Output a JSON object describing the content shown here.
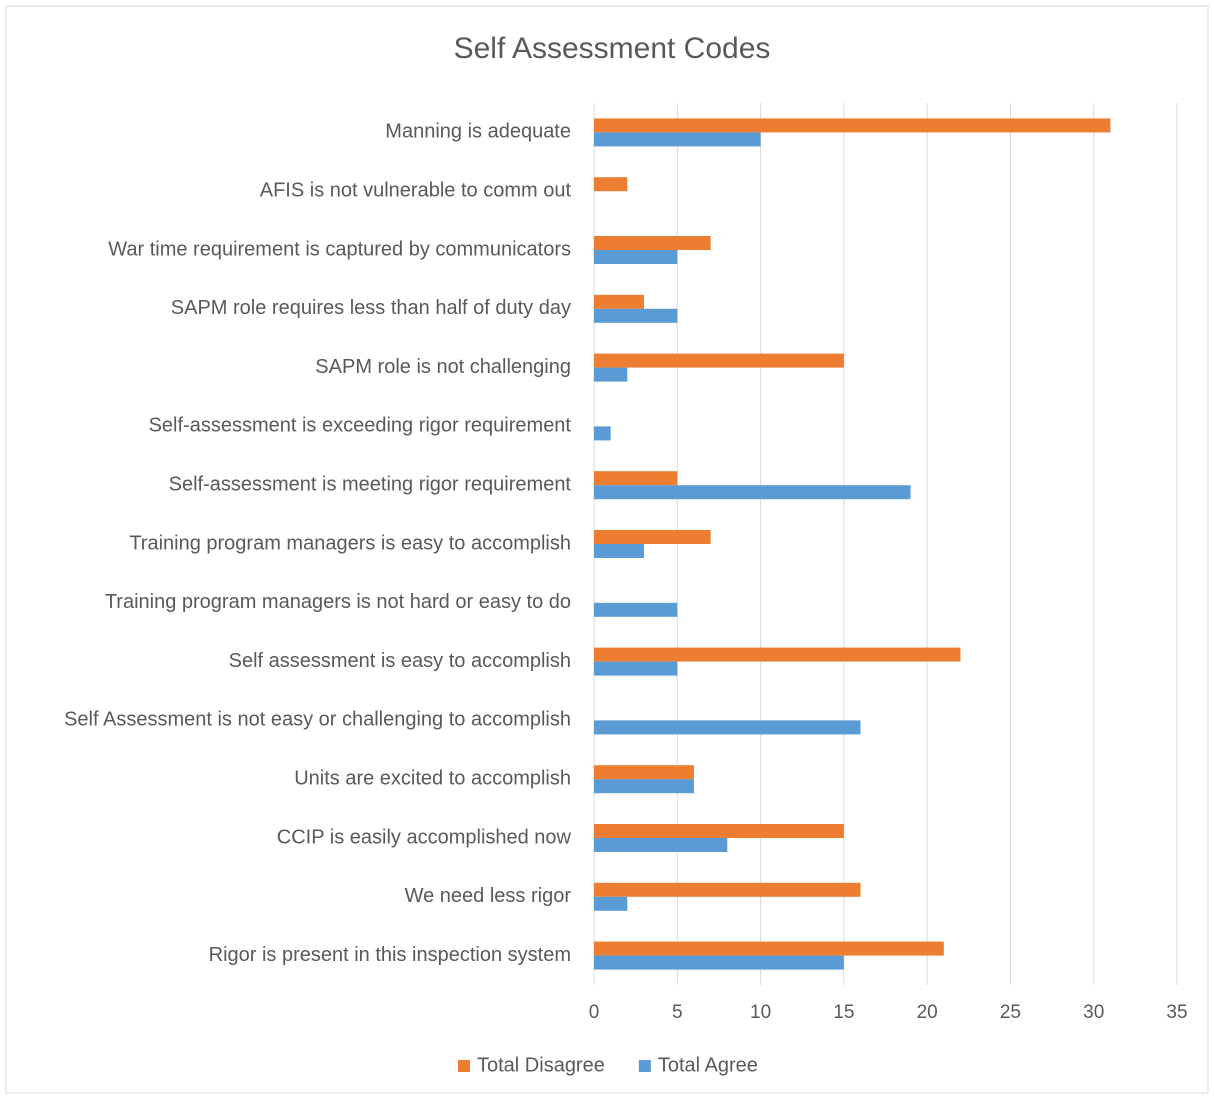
{
  "chart_data": {
    "type": "bar",
    "orientation": "horizontal",
    "title": "Self Assessment Codes",
    "categories": [
      "Manning is adequate",
      "AFIS is not vulnerable to comm out",
      "War time requirement is captured by communicators",
      "SAPM role requires less than half of duty day",
      "SAPM role is not challenging",
      "Self-assessment is exceeding rigor requirement",
      "Self-assessment is meeting rigor requirement",
      "Training program managers is easy to accomplish",
      "Training program managers is not hard or easy to do",
      "Self assessment is easy to accomplish",
      "Self Assessment is not easy or challenging to accomplish",
      "Units are excited to accomplish",
      "CCIP is easily accomplished now",
      "We need less rigor",
      "Rigor is present in this inspection system"
    ],
    "series": [
      {
        "name": "Total Disagree",
        "color": "#ed7d31",
        "values": [
          31,
          2,
          7,
          3,
          15,
          0,
          5,
          7,
          0,
          22,
          0,
          6,
          15,
          16,
          21
        ]
      },
      {
        "name": "Total Agree",
        "color": "#5b9bd5",
        "values": [
          10,
          0,
          5,
          5,
          2,
          1,
          19,
          3,
          5,
          5,
          16,
          6,
          8,
          2,
          15
        ]
      }
    ],
    "xlim": [
      0,
      35
    ],
    "xticks": [
      0,
      5,
      10,
      15,
      20,
      25,
      30,
      35
    ],
    "grid": true,
    "legend": "bottom"
  }
}
